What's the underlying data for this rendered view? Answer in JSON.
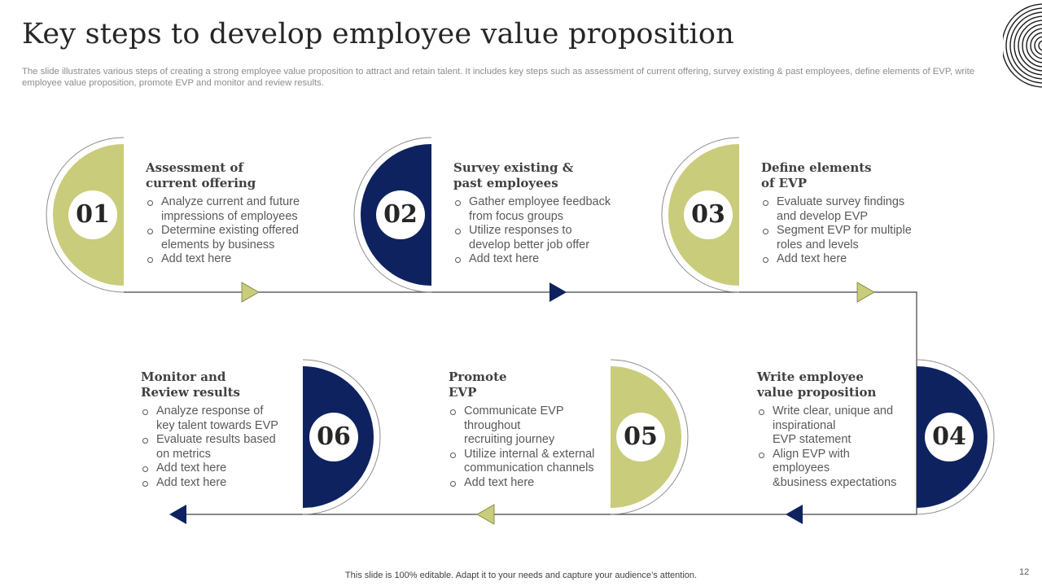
{
  "header": {
    "title": "Key steps to develop employee value proposition",
    "subtitle": "The slide illustrates various steps of creating a strong employee value proposition to attract and retain talent. It includes key steps such as assessment of current offering, survey existing & past employees, define elements of EVP,  write employee value proposition, promote EVP  and monitor and review results."
  },
  "colors": {
    "olive": "#c9cc7a",
    "navy": "#0e2260",
    "line": "#404040"
  },
  "steps": [
    {
      "number": "01",
      "title": "Assessment of\ncurrent offering",
      "bullets": [
        "Analyze current and future\nimpressions of employees",
        "Determine existing offered\nelements by business",
        "Add text here"
      ]
    },
    {
      "number": "02",
      "title": "Survey existing &\npast employees",
      "bullets": [
        "Gather employee feedback\nfrom focus groups",
        "Utilize responses to\ndevelop better job offer",
        "Add text here"
      ]
    },
    {
      "number": "03",
      "title": "Define elements\nof EVP",
      "bullets": [
        "Evaluate survey findings\nand develop  EVP",
        "Segment EVP for multiple\nroles and levels",
        "Add text here"
      ]
    },
    {
      "number": "04",
      "title": "Write employee\nvalue proposition",
      "bullets": [
        "Write clear, unique and\ninspirational\nEVP statement",
        "Align  EVP with\nemployees\n&business expectations"
      ]
    },
    {
      "number": "05",
      "title": "Promote\nEVP",
      "bullets": [
        "Communicate EVP\nthroughout\nrecruiting journey",
        "Utilize internal & external\ncommunication channels",
        "Add text here"
      ]
    },
    {
      "number": "06",
      "title": "Monitor and\nReview results",
      "bullets": [
        "Analyze response of\nkey talent towards EVP",
        "Evaluate results based\non metrics",
        "Add text here",
        "Add text here"
      ]
    }
  ],
  "footer": {
    "note": "This slide is 100% editable. Adapt it to your needs and capture your audience’s attention.",
    "page_number": "12"
  }
}
